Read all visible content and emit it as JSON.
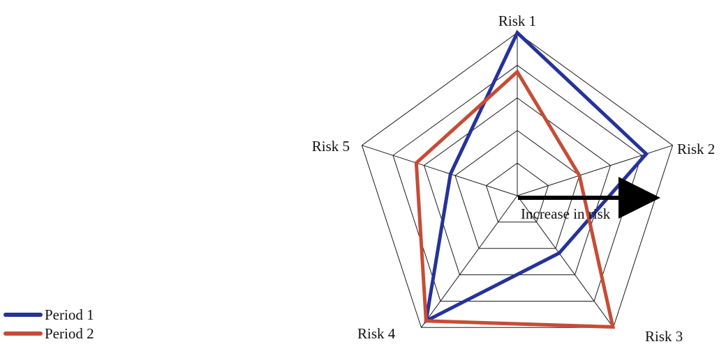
{
  "chart_data": {
    "type": "radar",
    "axes": [
      "Risk 1",
      "Risk 2",
      "Risk 3",
      "Risk 4",
      "Risk 5"
    ],
    "levels": 5,
    "max": 5,
    "series": [
      {
        "name": "Period 1",
        "color": "#26329a",
        "values": [
          5,
          4.15,
          2.18,
          4.75,
          2.15
        ]
      },
      {
        "name": "Period 2",
        "color": "#c64c36",
        "values": [
          3.8,
          2.0,
          4.98,
          4.75,
          3.25
        ]
      }
    ],
    "annotation": {
      "text": "Increase in risk",
      "type": "arrow"
    },
    "legend": {
      "position": "bottom-left"
    },
    "grid": true
  }
}
